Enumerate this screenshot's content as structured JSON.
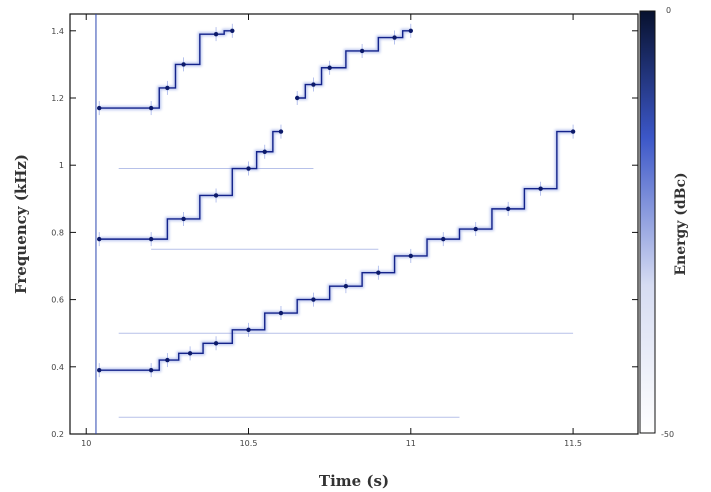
{
  "chart_data": {
    "type": "heatmap",
    "subtype": "spectrogram",
    "title": "",
    "xlabel": "Time (s)",
    "ylabel": "Frequency (kHz)",
    "colorbar_label": "Energy (dBc)",
    "xlim": [
      9.95,
      11.7
    ],
    "ylim": [
      0.2,
      1.45
    ],
    "xticks": [
      10,
      10.5,
      11,
      11.5
    ],
    "xtick_labels": [
      "10",
      "10.5",
      "11",
      "11.5"
    ],
    "yticks": [
      0.2,
      0.4,
      0.6,
      0.8,
      1.0,
      1.2,
      1.4
    ],
    "ytick_labels": [
      "0.2",
      "0.4",
      "0.6",
      "0.8",
      "1",
      "1.2",
      "1.4"
    ],
    "colorbar_range": [
      -50,
      0
    ],
    "colorbar_tick_labels": [
      "0",
      "-50"
    ],
    "colormap": [
      "#ffffff",
      "#4466cc",
      "#0a1f6e",
      "#07112e"
    ],
    "onset_time": 10.03,
    "series": [
      {
        "values": [
          [
            10.04,
            0.39
          ],
          [
            10.2,
            0.39
          ],
          [
            10.25,
            0.42
          ],
          [
            10.32,
            0.44
          ],
          [
            10.4,
            0.47
          ],
          [
            10.5,
            0.51
          ],
          [
            10.6,
            0.56
          ],
          [
            10.7,
            0.6
          ],
          [
            10.8,
            0.64
          ],
          [
            10.9,
            0.68
          ],
          [
            11.0,
            0.73
          ],
          [
            11.1,
            0.78
          ],
          [
            11.2,
            0.81
          ],
          [
            11.3,
            0.87
          ],
          [
            11.4,
            0.93
          ],
          [
            11.5,
            1.1
          ]
        ]
      },
      {
        "values": [
          [
            10.04,
            0.78
          ],
          [
            10.2,
            0.78
          ],
          [
            10.3,
            0.84
          ],
          [
            10.4,
            0.91
          ],
          [
            10.5,
            0.99
          ],
          [
            10.55,
            1.04
          ],
          [
            10.6,
            1.1
          ]
        ]
      },
      {
        "values": [
          [
            10.04,
            1.17
          ],
          [
            10.2,
            1.17
          ],
          [
            10.25,
            1.23
          ],
          [
            10.3,
            1.3
          ],
          [
            10.4,
            1.39
          ],
          [
            10.45,
            1.4
          ]
        ]
      },
      {
        "values": [
          [
            10.65,
            1.2
          ],
          [
            10.7,
            1.24
          ],
          [
            10.75,
            1.29
          ],
          [
            10.85,
            1.34
          ],
          [
            10.95,
            1.38
          ],
          [
            11.0,
            1.4
          ]
        ]
      }
    ],
    "faint_horizontal_lines": [
      {
        "freq": 0.25,
        "from": 10.1,
        "to": 11.15
      },
      {
        "freq": 0.5,
        "from": 10.1,
        "to": 11.5
      },
      {
        "freq": 0.75,
        "from": 10.2,
        "to": 10.9
      },
      {
        "freq": 0.99,
        "from": 10.1,
        "to": 10.7
      }
    ]
  }
}
